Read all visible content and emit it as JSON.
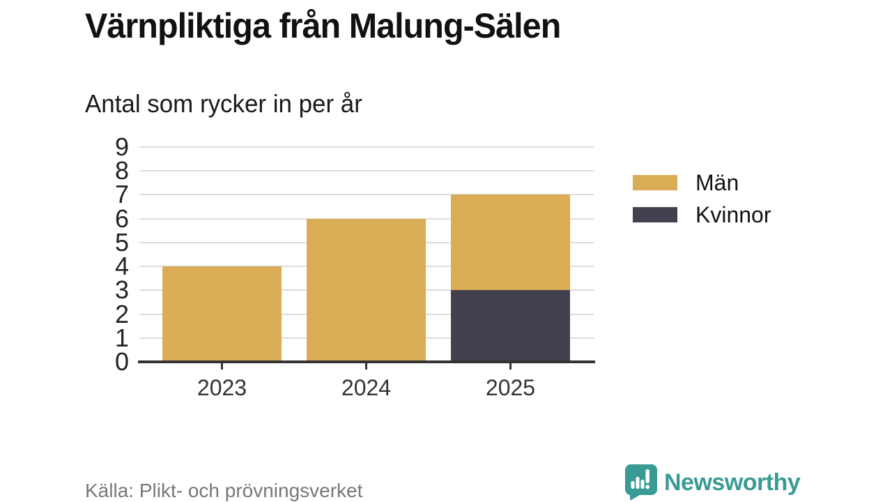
{
  "page": {
    "title": "Värnpliktiga från Malung-Sälen",
    "subtitle": "Antal som rycker in per år",
    "source": "Källa: Plikt- och prövningsverket",
    "brand": "Newsworthy"
  },
  "colors": {
    "men": "#D9AC55",
    "women": "#434050",
    "teal": "#3A9B95",
    "grid": "#DDDDDD",
    "axis": "#333333"
  },
  "legend": {
    "items": [
      {
        "label": "Män",
        "color_key": "men"
      },
      {
        "label": "Kvinnor",
        "color_key": "women"
      }
    ]
  },
  "chart_data": {
    "type": "bar",
    "stacked": true,
    "title": "Värnpliktiga från Malung-Sälen",
    "subtitle": "Antal som rycker in per år",
    "categories": [
      "2023",
      "2024",
      "2025"
    ],
    "series": [
      {
        "name": "Män",
        "color_key": "men",
        "values": [
          4,
          6,
          4
        ]
      },
      {
        "name": "Kvinnor",
        "color_key": "women",
        "values": [
          0,
          0,
          3
        ]
      }
    ],
    "stack_order": [
      "Kvinnor",
      "Män"
    ],
    "totals": [
      4,
      6,
      7
    ],
    "xlabel": "",
    "ylabel": "",
    "ylim": [
      0,
      9
    ],
    "yticks": [
      0,
      1,
      2,
      3,
      4,
      5,
      6,
      7,
      8,
      9
    ],
    "grid": true,
    "legend_position": "right"
  }
}
